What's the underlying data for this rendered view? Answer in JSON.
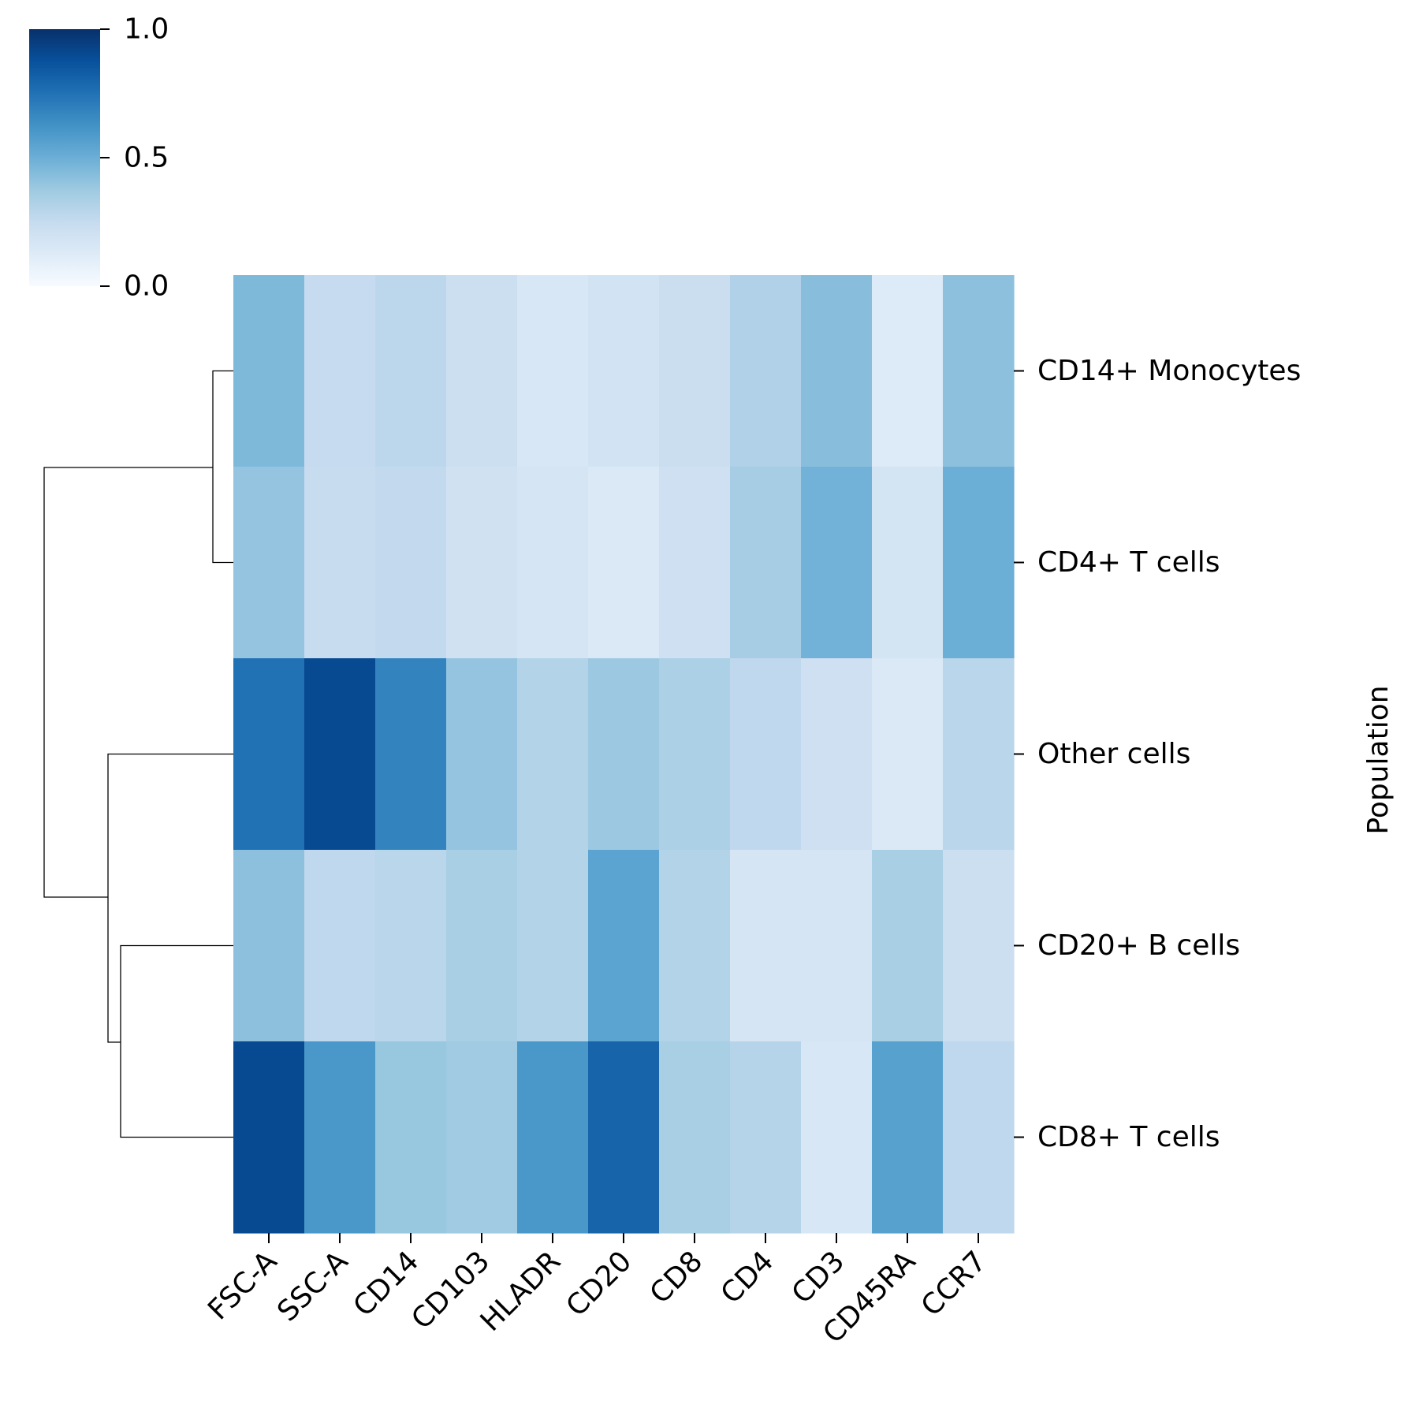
{
  "chart_data": {
    "type": "heatmap",
    "title": "",
    "xlabel": "",
    "ylabel": "Population",
    "x_categories": [
      "FSC-A",
      "SSC-A",
      "CD14",
      "CD103",
      "HLADR",
      "CD20",
      "CD8",
      "CD4",
      "CD3",
      "CD45RA",
      "CCR7"
    ],
    "y_categories": [
      "CD14+ Monocytes",
      "CD4+ T cells",
      "Other cells",
      "CD20+ B cells",
      "CD8+ T cells"
    ],
    "values": [
      [
        0.45,
        0.25,
        0.28,
        0.22,
        0.16,
        0.19,
        0.23,
        0.32,
        0.43,
        0.13,
        0.42
      ],
      [
        0.4,
        0.24,
        0.26,
        0.2,
        0.17,
        0.14,
        0.21,
        0.35,
        0.48,
        0.18,
        0.5
      ],
      [
        0.75,
        0.9,
        0.68,
        0.4,
        0.31,
        0.38,
        0.33,
        0.27,
        0.21,
        0.14,
        0.29
      ],
      [
        0.42,
        0.27,
        0.29,
        0.34,
        0.31,
        0.55,
        0.31,
        0.17,
        0.17,
        0.34,
        0.22
      ],
      [
        0.9,
        0.6,
        0.39,
        0.37,
        0.6,
        0.8,
        0.34,
        0.3,
        0.16,
        0.56,
        0.27
      ]
    ],
    "colormap": "Blues",
    "colorbar": {
      "min": 0.0,
      "max": 1.0,
      "ticks": [
        0.0,
        0.5,
        1.0
      ],
      "tick_labels": [
        "0.0",
        "0.5",
        "1.0"
      ]
    },
    "row_dendrogram": true,
    "grid": false
  }
}
